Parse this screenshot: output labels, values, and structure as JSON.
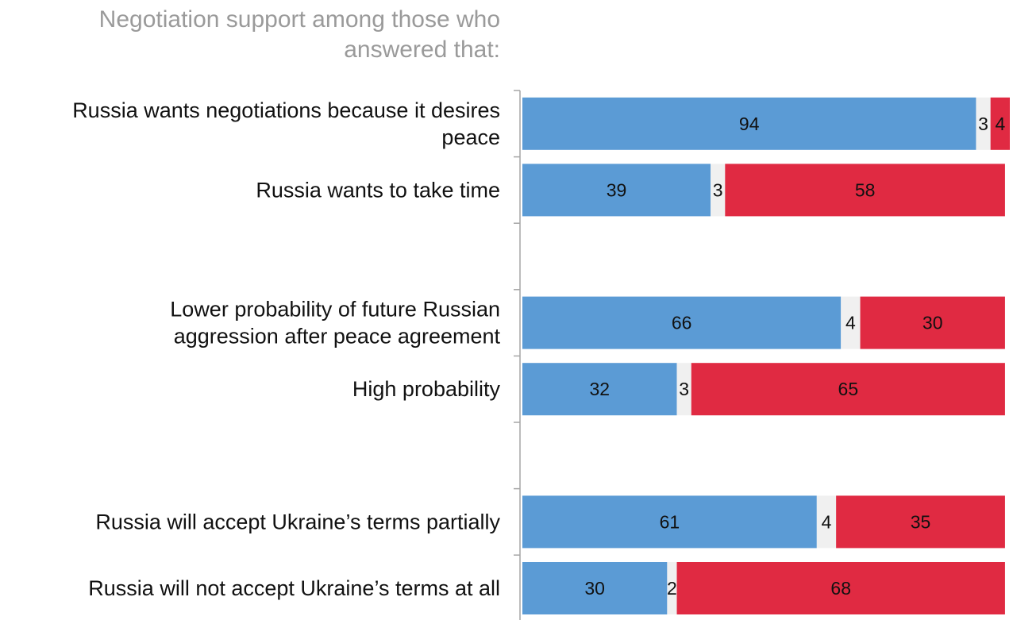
{
  "chart_data": {
    "type": "bar",
    "stacked": true,
    "orientation": "horizontal",
    "percent_stacked": true,
    "title": "Negotiation support among those who answered that:",
    "categories": [
      [
        "Russia wants negotiations because it desires",
        "peace"
      ],
      [
        "Russia wants to take time"
      ],
      [],
      [
        "Lower probability of future Russian",
        "aggression after peace agreement"
      ],
      [
        "High probability"
      ],
      [],
      [
        "Russia will accept Ukraine’s terms partially"
      ],
      [
        "Russia will not accept Ukraine’s terms at all"
      ]
    ],
    "series": [
      {
        "color": "#5b9bd5",
        "values": [
          94,
          39,
          null,
          66,
          32,
          null,
          61,
          30
        ]
      },
      {
        "color": "#f0f0f0",
        "values": [
          3,
          3,
          null,
          4,
          3,
          null,
          4,
          2
        ]
      },
      {
        "color": "#e02a42",
        "values": [
          4,
          58,
          null,
          30,
          65,
          null,
          35,
          68
        ]
      }
    ],
    "xlim": [
      0,
      101
    ],
    "legend": "none",
    "grid": false
  }
}
